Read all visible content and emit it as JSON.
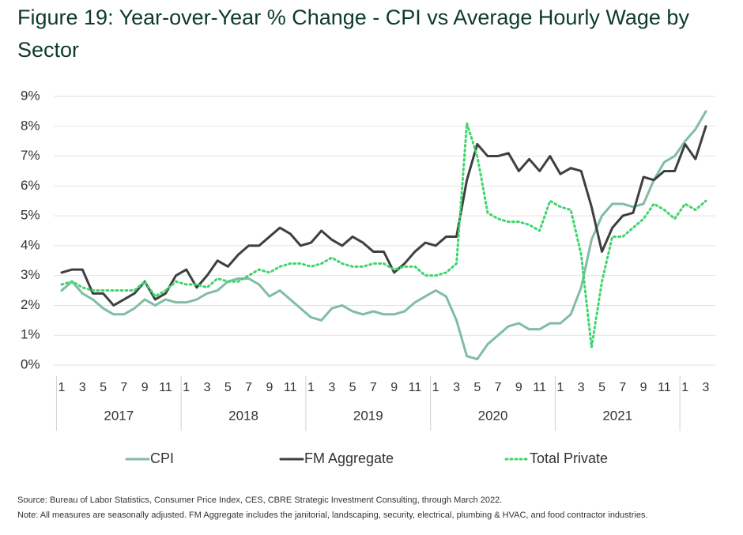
{
  "chart_data": {
    "type": "line",
    "title": "Figure 19: Year-over-Year % Change - CPI vs Average Hourly Wage by Sector",
    "categories": [
      "1",
      null,
      "3",
      null,
      "5",
      null,
      "7",
      null,
      "9",
      null,
      "11",
      null,
      "1",
      null,
      "3",
      null,
      "5",
      null,
      "7",
      null,
      "9",
      null,
      "11",
      null,
      "1",
      null,
      "3",
      null,
      "5",
      null,
      "7",
      null,
      "9",
      null,
      "11",
      null,
      "1",
      null,
      "3",
      null,
      "5",
      null,
      "7",
      null,
      "9",
      null,
      "11",
      null,
      "1",
      null,
      "3",
      null,
      "5",
      null,
      "7",
      null,
      "9",
      null,
      "11",
      null,
      "1",
      null,
      "3"
    ],
    "year_labels": [
      "2017",
      "2018",
      "2019",
      "2020",
      "2021"
    ],
    "ylim": [
      0,
      9
    ],
    "yticks": [
      {
        "value": 0,
        "label": "0%"
      },
      {
        "value": 1,
        "label": "1%"
      },
      {
        "value": 2,
        "label": "2%"
      },
      {
        "value": 3,
        "label": "3%"
      },
      {
        "value": 4,
        "label": "4%"
      },
      {
        "value": 5,
        "label": "5%"
      },
      {
        "value": 6,
        "label": "6%"
      },
      {
        "value": 7,
        "label": "7%"
      },
      {
        "value": 8,
        "label": "8%"
      },
      {
        "value": 9,
        "label": "9%"
      }
    ],
    "grid": true,
    "legend": "bottom",
    "series": [
      {
        "name": "CPI",
        "color": "#80bda3",
        "style": "solid",
        "values": [
          2.5,
          2.8,
          2.4,
          2.2,
          1.9,
          1.7,
          1.7,
          1.9,
          2.2,
          2.0,
          2.2,
          2.1,
          2.1,
          2.2,
          2.4,
          2.5,
          2.8,
          2.9,
          2.9,
          2.7,
          2.3,
          2.5,
          2.2,
          1.9,
          1.6,
          1.5,
          1.9,
          2.0,
          1.8,
          1.7,
          1.8,
          1.7,
          1.7,
          1.8,
          2.1,
          2.3,
          2.5,
          2.3,
          1.5,
          0.3,
          0.2,
          0.7,
          1.0,
          1.3,
          1.4,
          1.2,
          1.2,
          1.4,
          1.4,
          1.7,
          2.6,
          4.2,
          5.0,
          5.4,
          5.4,
          5.3,
          5.4,
          6.2,
          6.8,
          7.0,
          7.5,
          7.9,
          8.5
        ]
      },
      {
        "name": "FM Aggregate",
        "color": "#3c403e",
        "style": "solid",
        "values": [
          3.1,
          3.2,
          3.2,
          2.4,
          2.4,
          2.0,
          2.2,
          2.4,
          2.8,
          2.2,
          2.4,
          3.0,
          3.2,
          2.6,
          3.0,
          3.5,
          3.3,
          3.7,
          4.0,
          4.0,
          4.3,
          4.6,
          4.4,
          4.0,
          4.1,
          4.5,
          4.2,
          4.0,
          4.3,
          4.1,
          3.8,
          3.8,
          3.1,
          3.4,
          3.8,
          4.1,
          4.0,
          4.3,
          4.3,
          6.2,
          7.4,
          7.0,
          7.0,
          7.1,
          6.5,
          6.9,
          6.5,
          7.0,
          6.4,
          6.6,
          6.5,
          5.3,
          3.8,
          4.6,
          5.0,
          5.1,
          6.3,
          6.2,
          6.5,
          6.5,
          7.4,
          6.9,
          8.0
        ]
      },
      {
        "name": "Total Private",
        "color": "#3ed66d",
        "style": "dotted",
        "values": [
          2.7,
          2.8,
          2.6,
          2.5,
          2.5,
          2.5,
          2.5,
          2.5,
          2.8,
          2.3,
          2.5,
          2.8,
          2.7,
          2.7,
          2.6,
          2.9,
          2.8,
          2.8,
          3.0,
          3.2,
          3.1,
          3.3,
          3.4,
          3.4,
          3.3,
          3.4,
          3.6,
          3.4,
          3.3,
          3.3,
          3.4,
          3.4,
          3.2,
          3.3,
          3.3,
          3.0,
          3.0,
          3.1,
          3.4,
          8.1,
          7.0,
          5.1,
          4.9,
          4.8,
          4.8,
          4.7,
          4.5,
          5.5,
          5.3,
          5.2,
          3.7,
          0.6,
          2.8,
          4.3,
          4.3,
          4.6,
          4.9,
          5.4,
          5.2,
          4.9,
          5.4,
          5.2,
          5.5
        ]
      }
    ],
    "source": "Source: Bureau of Labor Statistics, Consumer Price Index, CES, CBRE Strategic Investment Consulting, through March 2022.",
    "note": "Note: All measures are seasonally adjusted. FM Aggregate includes the janitorial, landscaping, security, electrical, plumbing & HVAC, and food contractor industries."
  }
}
